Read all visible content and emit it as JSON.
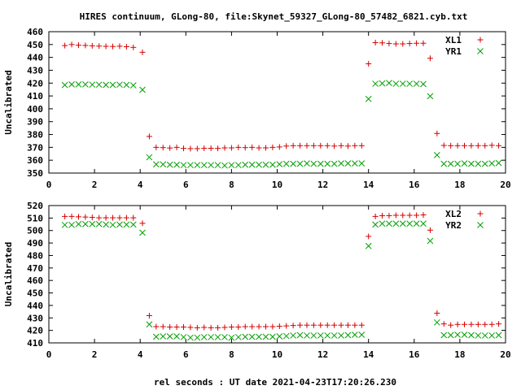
{
  "figure": {
    "title": "HIRES continuum, GLong-80, file:Skynet_59327_GLong-80_57482_6821.cyb.txt",
    "xlabel": "rel seconds : UT date 2021-04-23T17:20:26.230",
    "colors": {
      "red": "#d40000",
      "green": "#00a000",
      "frame": "#000000"
    }
  },
  "chart_data": [
    {
      "type": "scatter",
      "ylabel": "Uncalibrated",
      "xlim": [
        0,
        20
      ],
      "ylim": [
        350,
        460
      ],
      "xticks": [
        0,
        2,
        4,
        6,
        8,
        10,
        12,
        14,
        16,
        18,
        20
      ],
      "yticks": [
        350,
        360,
        370,
        380,
        390,
        400,
        410,
        420,
        430,
        440,
        450,
        460
      ],
      "legend_position": "top-right",
      "series": [
        {
          "name": "XL1",
          "color": "#d40000",
          "marker": "plus",
          "x": [
            0.7,
            1.0,
            1.3,
            1.6,
            1.9,
            2.2,
            2.5,
            2.8,
            3.1,
            3.4,
            3.7,
            4.1,
            4.4,
            4.7,
            5.0,
            5.3,
            5.6,
            5.9,
            6.2,
            6.5,
            6.8,
            7.1,
            7.4,
            7.7,
            8.0,
            8.3,
            8.6,
            8.9,
            9.2,
            9.5,
            9.8,
            10.1,
            10.4,
            10.7,
            11.0,
            11.3,
            11.6,
            11.9,
            12.2,
            12.5,
            12.8,
            13.1,
            13.4,
            13.7,
            14.0,
            14.3,
            14.6,
            14.9,
            15.2,
            15.5,
            15.8,
            16.1,
            16.4,
            16.7,
            17.0,
            17.3,
            17.6,
            17.9,
            18.2,
            18.5,
            18.8,
            19.1,
            19.4,
            19.7
          ],
          "y": [
            449.2,
            450,
            449.5,
            449.3,
            449,
            448.8,
            448.6,
            448.5,
            448.7,
            448.3,
            447.8,
            444,
            378.5,
            370,
            369.8,
            369.5,
            370,
            369.2,
            369,
            369,
            369.3,
            369.3,
            369.2,
            369.6,
            369.6,
            370,
            369.8,
            370,
            369.6,
            369.6,
            370,
            370.3,
            371,
            371.3,
            371.3,
            371.3,
            371.3,
            371.3,
            371.3,
            371,
            371.3,
            371,
            371.3,
            371.3,
            435,
            451.5,
            451.3,
            450.8,
            450.5,
            450.5,
            450.8,
            451,
            451,
            439.3,
            380.8,
            371.5,
            371.3,
            371.3,
            371.3,
            371.3,
            371.3,
            371.3,
            371.6,
            371.3
          ]
        },
        {
          "name": "YR1",
          "color": "#00a000",
          "marker": "cross",
          "x": [
            0.7,
            1.0,
            1.3,
            1.6,
            1.9,
            2.2,
            2.5,
            2.8,
            3.1,
            3.4,
            3.7,
            4.1,
            4.4,
            4.7,
            5.0,
            5.3,
            5.6,
            5.9,
            6.2,
            6.5,
            6.8,
            7.1,
            7.4,
            7.7,
            8.0,
            8.3,
            8.6,
            8.9,
            9.2,
            9.5,
            9.8,
            10.1,
            10.4,
            10.7,
            11.0,
            11.3,
            11.6,
            11.9,
            12.2,
            12.5,
            12.8,
            13.1,
            13.4,
            13.7,
            14.0,
            14.3,
            14.6,
            14.9,
            15.2,
            15.5,
            15.8,
            16.1,
            16.4,
            16.7,
            17.0,
            17.3,
            17.6,
            17.9,
            18.2,
            18.5,
            18.8,
            19.1,
            19.4,
            19.7
          ],
          "y": [
            418.5,
            419,
            419,
            419,
            418.8,
            418.8,
            418.6,
            418.6,
            418.8,
            418.6,
            418.3,
            414.8,
            362.3,
            356.8,
            356.8,
            356.5,
            356.5,
            356.2,
            356.2,
            356.2,
            356.2,
            356.2,
            356.2,
            355.9,
            356.2,
            356.2,
            356.5,
            356.5,
            356.5,
            356.5,
            356.5,
            356.9,
            357.2,
            357.2,
            357.2,
            357.5,
            357.2,
            357.2,
            357.2,
            357.2,
            357.5,
            357.5,
            357.5,
            357.5,
            407.7,
            419.5,
            419.8,
            420.1,
            419.5,
            419.5,
            419.5,
            419.5,
            419.2,
            409.8,
            364,
            357.2,
            357.2,
            357.2,
            357.5,
            357.2,
            357.2,
            357.2,
            357.5,
            357.8
          ]
        }
      ]
    },
    {
      "type": "scatter",
      "ylabel": "Uncalibrated",
      "xlim": [
        0,
        20
      ],
      "ylim": [
        410,
        520
      ],
      "xticks": [
        0,
        2,
        4,
        6,
        8,
        10,
        12,
        14,
        16,
        18,
        20
      ],
      "yticks": [
        410,
        420,
        430,
        440,
        450,
        460,
        470,
        480,
        490,
        500,
        510,
        520
      ],
      "legend_position": "top-right",
      "series": [
        {
          "name": "XL2",
          "color": "#d40000",
          "marker": "plus",
          "x": [
            0.7,
            1.0,
            1.3,
            1.6,
            1.9,
            2.2,
            2.5,
            2.8,
            3.1,
            3.4,
            3.7,
            4.1,
            4.4,
            4.7,
            5.0,
            5.3,
            5.6,
            5.9,
            6.2,
            6.5,
            6.8,
            7.1,
            7.4,
            7.7,
            8.0,
            8.3,
            8.6,
            8.9,
            9.2,
            9.5,
            9.8,
            10.1,
            10.4,
            10.7,
            11.0,
            11.3,
            11.6,
            11.9,
            12.2,
            12.5,
            12.8,
            13.1,
            13.4,
            13.7,
            14.0,
            14.3,
            14.6,
            14.9,
            15.2,
            15.5,
            15.8,
            16.1,
            16.4,
            16.7,
            17.0,
            17.3,
            17.6,
            17.9,
            18.2,
            18.5,
            18.8,
            19.1,
            19.4,
            19.7
          ],
          "y": [
            511.3,
            511.3,
            511,
            510.8,
            510.5,
            510.2,
            510.2,
            510.2,
            510.2,
            510.2,
            510.2,
            505.8,
            431.8,
            423,
            423,
            422.7,
            422.7,
            422.7,
            422.4,
            422.1,
            422.4,
            422.1,
            422.1,
            422.4,
            422.7,
            422.7,
            423,
            423,
            423,
            423,
            423,
            423.3,
            423.6,
            423.9,
            424.2,
            424.2,
            424.2,
            424.2,
            424.2,
            424.2,
            424.2,
            424.2,
            424.2,
            424.2,
            495.3,
            511.3,
            511.9,
            511.9,
            512.2,
            512.2,
            512.2,
            512.2,
            512.5,
            500.3,
            433.8,
            425.2,
            424.2,
            424.8,
            424.8,
            424.8,
            424.8,
            424.8,
            424.8,
            425.2
          ]
        },
        {
          "name": "YR2",
          "color": "#00a000",
          "marker": "cross",
          "x": [
            0.7,
            1.0,
            1.3,
            1.6,
            1.9,
            2.2,
            2.5,
            2.8,
            3.1,
            3.4,
            3.7,
            4.1,
            4.4,
            4.7,
            5.0,
            5.3,
            5.6,
            5.9,
            6.2,
            6.5,
            6.8,
            7.1,
            7.4,
            7.7,
            8.0,
            8.3,
            8.6,
            8.9,
            9.2,
            9.5,
            9.8,
            10.1,
            10.4,
            10.7,
            11.0,
            11.3,
            11.6,
            11.9,
            12.2,
            12.5,
            12.8,
            13.1,
            13.4,
            13.7,
            14.0,
            14.3,
            14.6,
            14.9,
            15.2,
            15.5,
            15.8,
            16.1,
            16.4,
            16.7,
            17.0,
            17.3,
            17.6,
            17.9,
            18.2,
            18.5,
            18.8,
            19.1,
            19.4,
            19.7
          ],
          "y": [
            504.5,
            504.5,
            505.2,
            505.2,
            505.2,
            505.2,
            504.8,
            504.5,
            504.8,
            504.8,
            504.8,
            498.3,
            424.8,
            414.9,
            415.2,
            415.2,
            415.2,
            414.6,
            414.2,
            414.2,
            414.6,
            414.6,
            414.6,
            414.6,
            414.2,
            414.6,
            414.9,
            414.9,
            414.9,
            414.9,
            414.9,
            415.2,
            415.5,
            415.9,
            416.2,
            415.9,
            415.9,
            415.9,
            415.9,
            415.9,
            415.9,
            416.2,
            416.5,
            416.5,
            487.6,
            504.8,
            505.5,
            505.5,
            505.5,
            505.5,
            505.5,
            505.5,
            505.5,
            491.7,
            426.4,
            416.2,
            416.2,
            416.5,
            416.5,
            416.2,
            415.9,
            415.9,
            415.9,
            416.2
          ]
        }
      ]
    }
  ]
}
